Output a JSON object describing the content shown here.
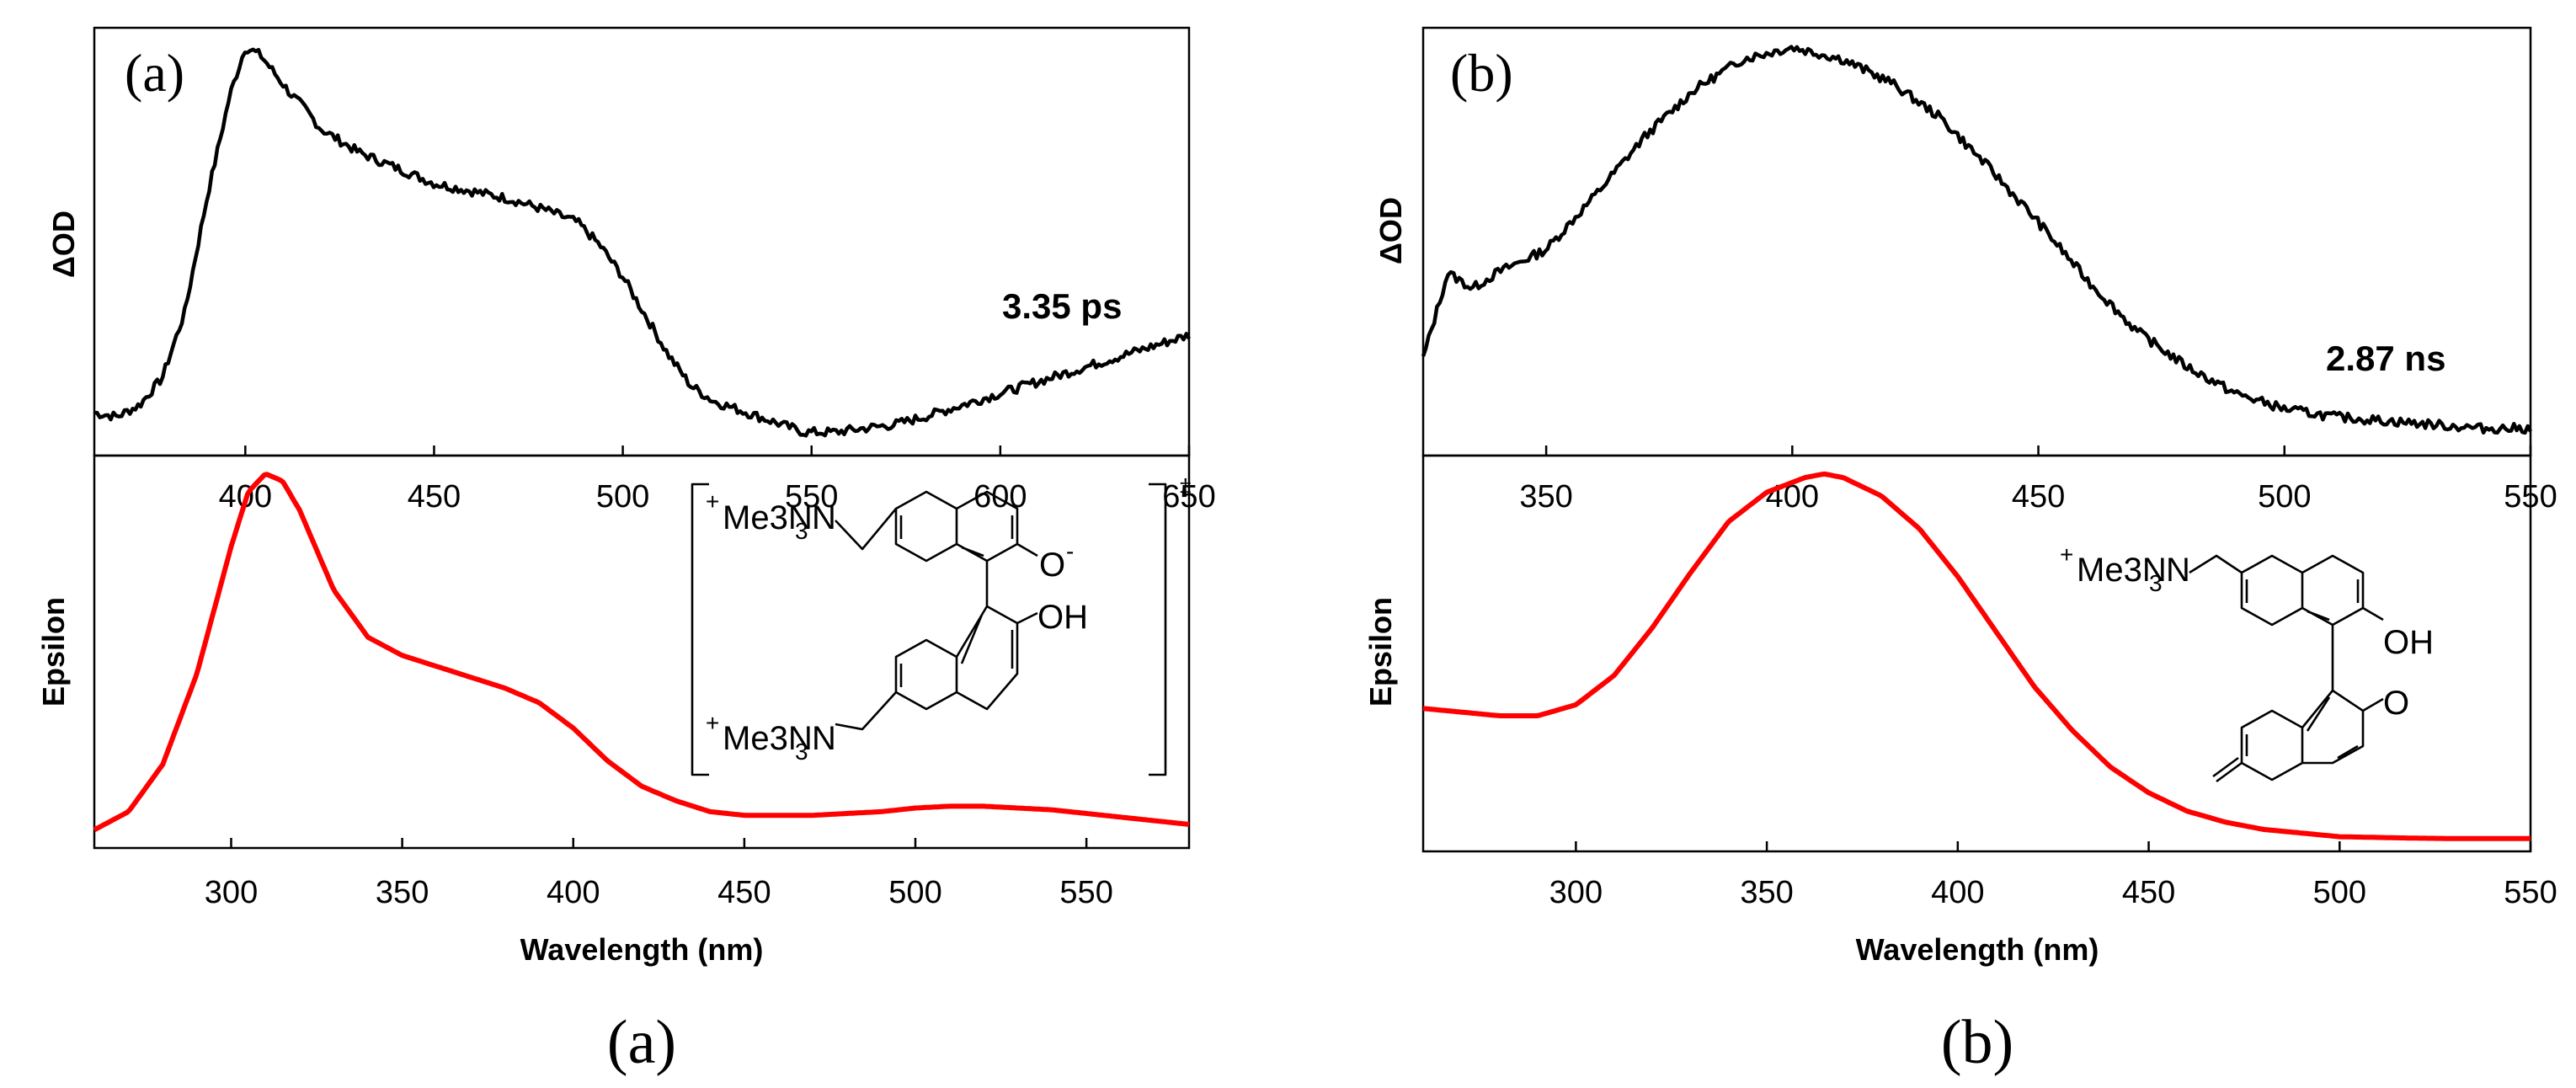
{
  "captions": {
    "a": "(a)",
    "b": "(b)"
  },
  "structures": {
    "a": {
      "top_group": "Me3N",
      "bottom_group": "Me3N",
      "plus": "+",
      "sub3": "3",
      "o_minus_o": "O",
      "o_minus_sign": "-",
      "oh": "OH",
      "dagger": "‡"
    },
    "b": {
      "top_group": "Me3N",
      "plus": "+",
      "sub3": "3",
      "oh": "OH",
      "oxo": "O"
    }
  },
  "chart_data": [
    {
      "id": "a-top",
      "type": "line",
      "panel_label": "(a)",
      "ylabel": "ΔOD",
      "annotation": "3.35 ps",
      "xlim": [
        360,
        650
      ],
      "ylim": [
        -0.05,
        1.05
      ],
      "xticks": [
        400,
        450,
        500,
        550,
        600,
        650
      ],
      "color": "#000000",
      "x": [
        360,
        366,
        372,
        378,
        384,
        390,
        396,
        400,
        404,
        408,
        412,
        416,
        420,
        430,
        440,
        450,
        460,
        470,
        480,
        488,
        494,
        500,
        506,
        512,
        518,
        524,
        530,
        536,
        542,
        548,
        556,
        564,
        572,
        580,
        590,
        600,
        610,
        620,
        630,
        640,
        650
      ],
      "y": [
        0.06,
        0.05,
        0.08,
        0.15,
        0.32,
        0.62,
        0.88,
        1.0,
        0.98,
        0.93,
        0.88,
        0.84,
        0.79,
        0.73,
        0.69,
        0.65,
        0.63,
        0.61,
        0.58,
        0.55,
        0.49,
        0.41,
        0.31,
        0.21,
        0.13,
        0.09,
        0.07,
        0.05,
        0.03,
        0.01,
        0.01,
        0.02,
        0.03,
        0.05,
        0.08,
        0.11,
        0.14,
        0.17,
        0.2,
        0.23,
        0.26
      ]
    },
    {
      "id": "a-bottom",
      "type": "line",
      "ylabel": "Epsilon",
      "xlabel": "Wavelength (nm)",
      "xlim": [
        260,
        580
      ],
      "ylim": [
        -0.03,
        1.05
      ],
      "xticks": [
        300,
        350,
        400,
        450,
        500,
        550
      ],
      "color": "#ff0000",
      "x": [
        260,
        270,
        280,
        290,
        300,
        305,
        310,
        315,
        320,
        330,
        340,
        350,
        360,
        370,
        380,
        390,
        400,
        410,
        420,
        430,
        440,
        450,
        460,
        470,
        480,
        490,
        500,
        510,
        520,
        530,
        540,
        550,
        560,
        570,
        580
      ],
      "y": [
        0.02,
        0.07,
        0.2,
        0.45,
        0.8,
        0.95,
        1.0,
        0.98,
        0.9,
        0.68,
        0.55,
        0.5,
        0.47,
        0.44,
        0.41,
        0.37,
        0.3,
        0.21,
        0.14,
        0.1,
        0.07,
        0.06,
        0.06,
        0.06,
        0.065,
        0.07,
        0.08,
        0.085,
        0.085,
        0.08,
        0.075,
        0.065,
        0.055,
        0.045,
        0.035
      ]
    },
    {
      "id": "b-top",
      "type": "line",
      "panel_label": "(b)",
      "ylabel": "ΔOD",
      "annotation": "2.87 ns",
      "xlim": [
        325,
        550
      ],
      "ylim": [
        -0.05,
        1.05
      ],
      "xticks": [
        350,
        400,
        450,
        500,
        550
      ],
      "color": "#000000",
      "x": [
        325,
        330,
        335,
        340,
        350,
        360,
        370,
        380,
        390,
        400,
        410,
        420,
        430,
        440,
        450,
        460,
        470,
        480,
        490,
        500,
        510,
        520,
        530,
        540,
        550
      ],
      "y": [
        0.2,
        0.42,
        0.38,
        0.42,
        0.48,
        0.62,
        0.77,
        0.89,
        0.97,
        1.0,
        0.97,
        0.91,
        0.82,
        0.69,
        0.55,
        0.4,
        0.27,
        0.18,
        0.11,
        0.07,
        0.05,
        0.04,
        0.03,
        0.02,
        0.02
      ]
    },
    {
      "id": "b-bottom",
      "type": "line",
      "ylabel": "Epsilon",
      "xlabel": "Wavelength (nm)",
      "xlim": [
        260,
        550
      ],
      "ylim": [
        -0.03,
        1.05
      ],
      "xticks": [
        300,
        350,
        400,
        450,
        500,
        550
      ],
      "color": "#ff0000",
      "x": [
        260,
        270,
        280,
        290,
        300,
        310,
        320,
        330,
        340,
        350,
        360,
        365,
        370,
        380,
        390,
        400,
        410,
        420,
        430,
        440,
        450,
        460,
        470,
        480,
        490,
        500,
        510,
        520,
        530,
        540,
        550
      ],
      "y": [
        0.36,
        0.35,
        0.34,
        0.34,
        0.37,
        0.45,
        0.58,
        0.73,
        0.87,
        0.95,
        0.99,
        1.0,
        0.99,
        0.94,
        0.85,
        0.72,
        0.57,
        0.42,
        0.3,
        0.2,
        0.13,
        0.08,
        0.05,
        0.03,
        0.02,
        0.01,
        0.008,
        0.006,
        0.005,
        0.005,
        0.005
      ]
    }
  ]
}
